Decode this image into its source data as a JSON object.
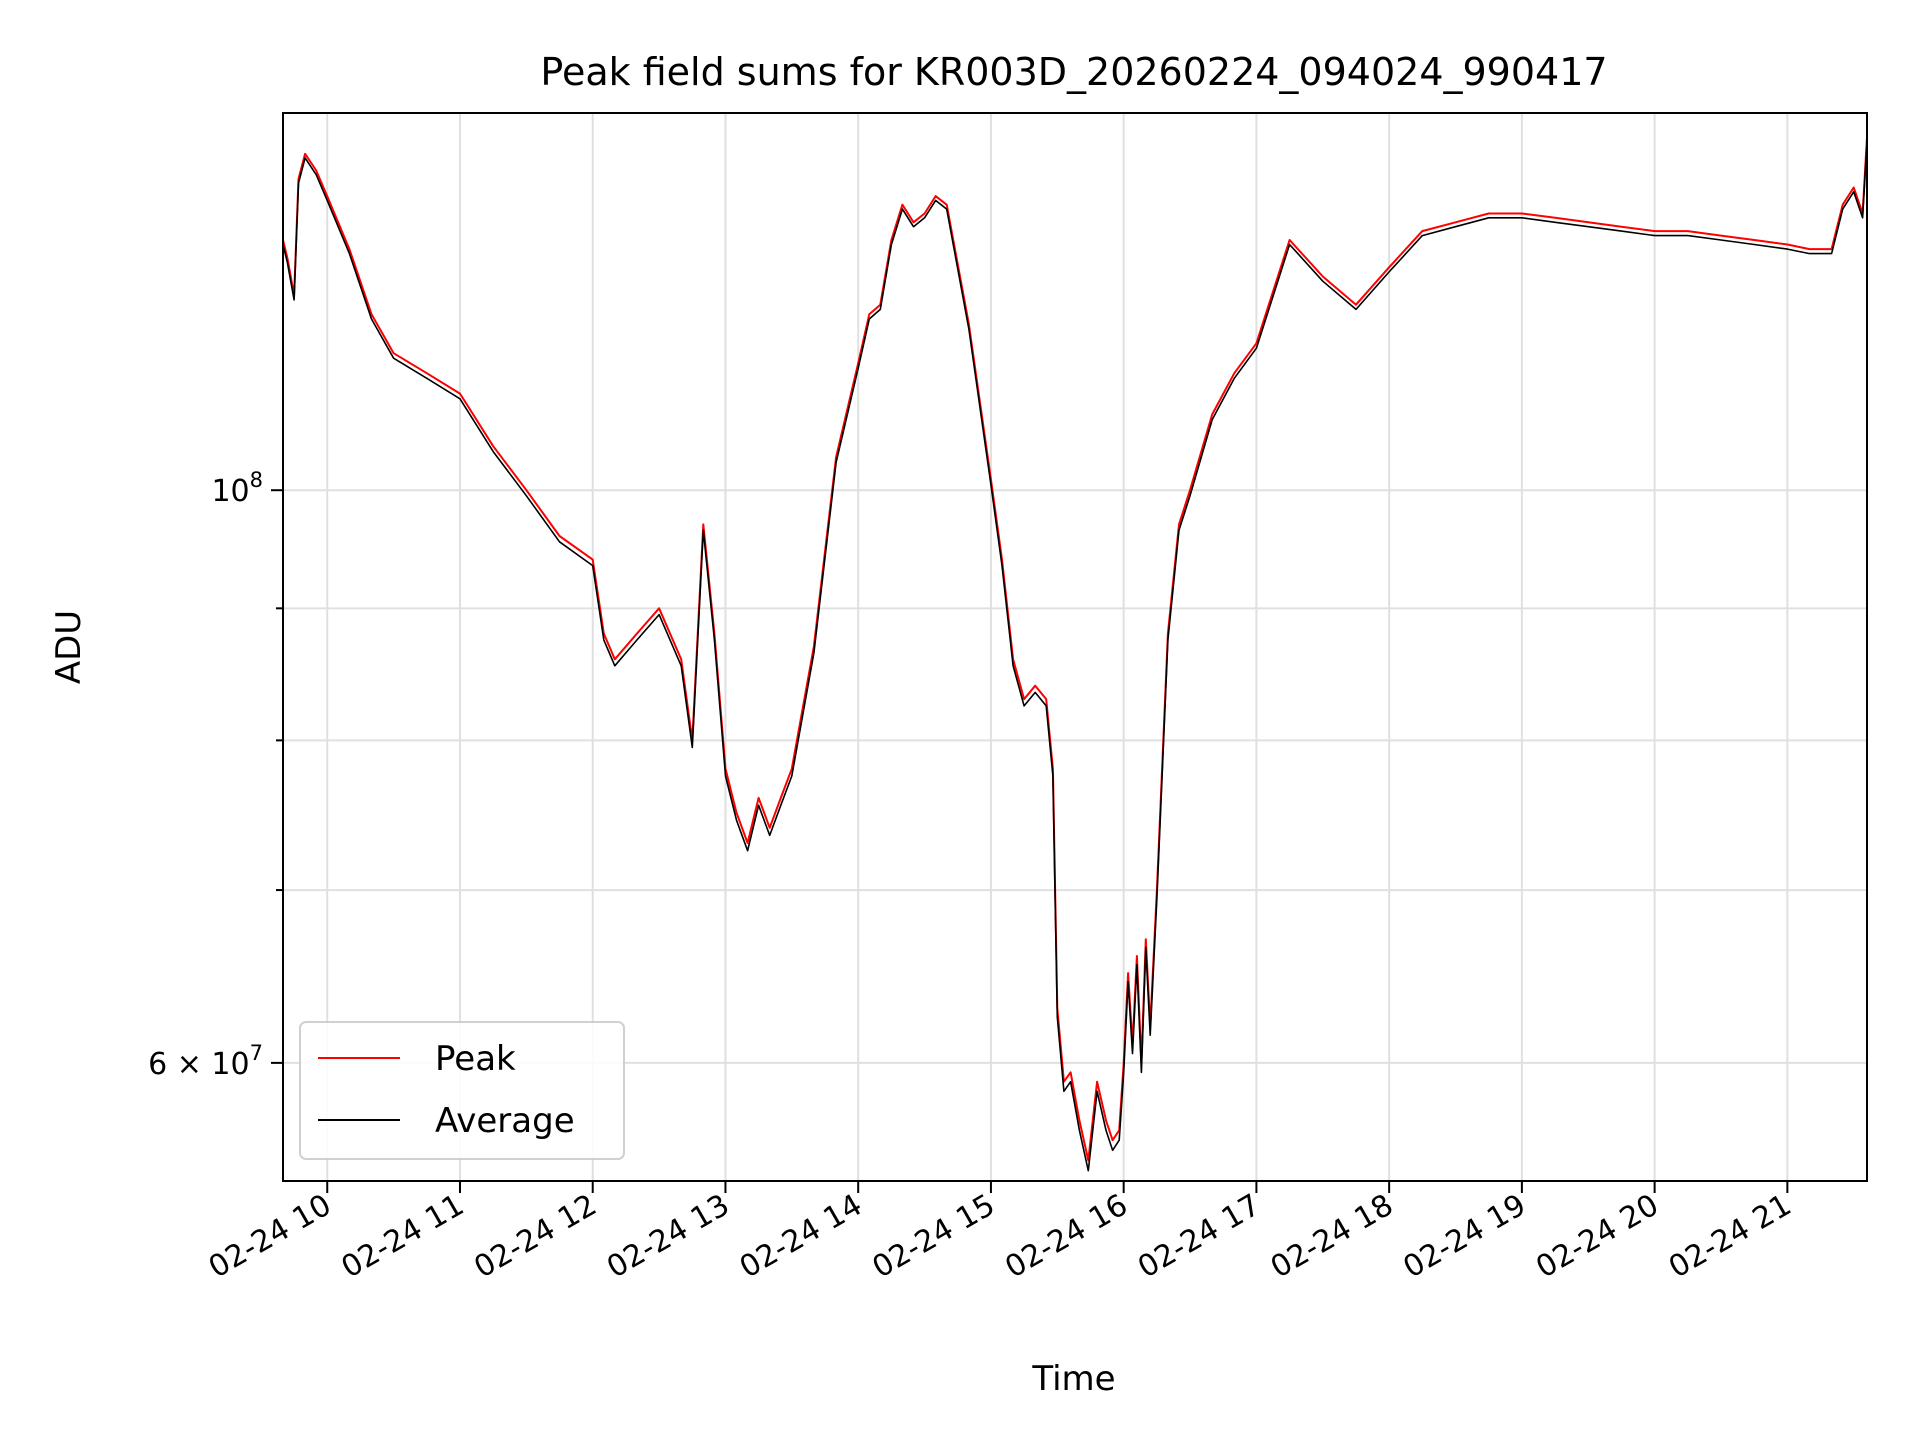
{
  "chart_data": {
    "type": "line",
    "title": "Peak field sums for KR003D_20260224_094024_990417",
    "xlabel": "Time",
    "ylabel": "ADU",
    "yscale": "log",
    "xlim": [
      "02-24 09:40",
      "02-24 21:36"
    ],
    "ylim": [
      54000000,
      140000000
    ],
    "grid": true,
    "legend": "lower-left",
    "x_tick_labels": [
      "02-24 10",
      "02-24 11",
      "02-24 12",
      "02-24 13",
      "02-24 14",
      "02-24 15",
      "02-24 16",
      "02-24 17",
      "02-24 18",
      "02-24 19",
      "02-24 20",
      "02-24 21"
    ],
    "y_tick_labels": [
      {
        "value": 100000000,
        "base": "10",
        "exp": "8"
      },
      {
        "value": 60000000,
        "base": "6 × 10",
        "exp": "7"
      }
    ],
    "y_minor_ticks": [
      70000000,
      80000000,
      90000000
    ],
    "series": [
      {
        "name": "Peak",
        "color": "#ff0000",
        "x": [
          "09:40",
          "09:42",
          "09:45",
          "09:47",
          "09:50",
          "09:55",
          "10:00",
          "10:10",
          "10:20",
          "10:30",
          "10:45",
          "11:00",
          "11:15",
          "11:30",
          "11:45",
          "12:00",
          "12:05",
          "12:10",
          "12:20",
          "12:30",
          "12:40",
          "12:45",
          "12:50",
          "12:55",
          "13:00",
          "13:05",
          "13:10",
          "13:15",
          "13:20",
          "13:25",
          "13:30",
          "13:40",
          "13:50",
          "14:00",
          "14:05",
          "14:10",
          "14:15",
          "14:20",
          "14:25",
          "14:30",
          "14:35",
          "14:40",
          "14:50",
          "15:00",
          "15:05",
          "15:10",
          "15:15",
          "15:20",
          "15:25",
          "15:28",
          "15:30",
          "15:33",
          "15:36",
          "15:40",
          "15:44",
          "15:48",
          "15:52",
          "15:55",
          "15:58",
          "16:00",
          "16:02",
          "16:04",
          "16:06",
          "16:08",
          "16:10",
          "16:12",
          "16:15",
          "16:20",
          "16:25",
          "16:30",
          "16:40",
          "16:50",
          "17:00",
          "17:15",
          "17:30",
          "17:45",
          "18:00",
          "18:15",
          "18:30",
          "18:45",
          "19:00",
          "19:15",
          "19:30",
          "19:45",
          "20:00",
          "20:15",
          "20:30",
          "20:45",
          "21:00",
          "21:10",
          "21:20",
          "21:25",
          "21:30",
          "21:34",
          "21:36"
        ],
        "values": [
          125000000,
          123000000,
          119000000,
          132000000,
          135000000,
          133000000,
          130000000,
          124000000,
          117000000,
          113000000,
          111000000,
          109000000,
          104000000,
          100000000,
          96000000,
          94000000,
          88000000,
          86000000,
          88000000,
          90000000,
          86000000,
          80000000,
          97000000,
          88000000,
          78000000,
          75000000,
          73000000,
          76000000,
          74000000,
          76000000,
          78000000,
          87000000,
          103000000,
          112000000,
          117000000,
          118000000,
          125000000,
          129000000,
          127000000,
          128000000,
          130000000,
          129000000,
          116000000,
          101000000,
          94000000,
          86000000,
          83000000,
          84000000,
          83000000,
          78000000,
          63000000,
          59000000,
          59500000,
          57000000,
          55000000,
          59000000,
          57000000,
          56000000,
          56500000,
          60000000,
          65000000,
          61000000,
          66000000,
          60000000,
          67000000,
          62000000,
          70000000,
          88000000,
          97000000,
          100000000,
          107000000,
          111000000,
          114000000,
          125000000,
          121000000,
          118000000,
          122000000,
          126000000,
          127000000,
          128000000,
          128000000,
          127500000,
          127000000,
          126500000,
          126000000,
          126000000,
          125500000,
          125000000,
          124500000,
          124000000,
          124000000,
          129000000,
          131000000,
          128000000,
          137000000
        ]
      },
      {
        "name": "Average",
        "color": "#000000",
        "x": [
          "09:40",
          "09:42",
          "09:45",
          "09:47",
          "09:50",
          "09:55",
          "10:00",
          "10:10",
          "10:20",
          "10:30",
          "10:45",
          "11:00",
          "11:15",
          "11:30",
          "11:45",
          "12:00",
          "12:05",
          "12:10",
          "12:20",
          "12:30",
          "12:40",
          "12:45",
          "12:50",
          "12:55",
          "13:00",
          "13:05",
          "13:10",
          "13:15",
          "13:20",
          "13:25",
          "13:30",
          "13:40",
          "13:50",
          "14:00",
          "14:05",
          "14:10",
          "14:15",
          "14:20",
          "14:25",
          "14:30",
          "14:35",
          "14:40",
          "14:50",
          "15:00",
          "15:05",
          "15:10",
          "15:15",
          "15:20",
          "15:25",
          "15:28",
          "15:30",
          "15:33",
          "15:36",
          "15:40",
          "15:44",
          "15:48",
          "15:52",
          "15:55",
          "15:58",
          "16:00",
          "16:02",
          "16:04",
          "16:06",
          "16:08",
          "16:10",
          "16:12",
          "16:15",
          "16:20",
          "16:25",
          "16:30",
          "16:40",
          "16:50",
          "17:00",
          "17:15",
          "17:30",
          "17:45",
          "18:00",
          "18:15",
          "18:30",
          "18:45",
          "19:00",
          "19:15",
          "19:30",
          "19:45",
          "20:00",
          "20:15",
          "20:30",
          "20:45",
          "21:00",
          "21:10",
          "21:20",
          "21:25",
          "21:30",
          "21:34",
          "21:36"
        ],
        "values": [
          124500000,
          122500000,
          118500000,
          131500000,
          134500000,
          132500000,
          129500000,
          123500000,
          116500000,
          112500000,
          110500000,
          108500000,
          103500000,
          99500000,
          95500000,
          93500000,
          87500000,
          85500000,
          87500000,
          89500000,
          85500000,
          79500000,
          96500000,
          87500000,
          77500000,
          74500000,
          72500000,
          75500000,
          73500000,
          75500000,
          77500000,
          86500000,
          102500000,
          111500000,
          116500000,
          117500000,
          124500000,
          128500000,
          126500000,
          127500000,
          129500000,
          128500000,
          115500000,
          100500000,
          93500000,
          85500000,
          82500000,
          83500000,
          82500000,
          77500000,
          62500000,
          58500000,
          59000000,
          56500000,
          54500000,
          58500000,
          56500000,
          55500000,
          56000000,
          59500000,
          64500000,
          60500000,
          65500000,
          59500000,
          66500000,
          61500000,
          69500000,
          87500000,
          96500000,
          99500000,
          106500000,
          110500000,
          113500000,
          124500000,
          120500000,
          117500000,
          121500000,
          125500000,
          126500000,
          127500000,
          127500000,
          127000000,
          126500000,
          126000000,
          125500000,
          125500000,
          125000000,
          124500000,
          124000000,
          123500000,
          123500000,
          128500000,
          130500000,
          127500000,
          136500000
        ]
      }
    ]
  }
}
